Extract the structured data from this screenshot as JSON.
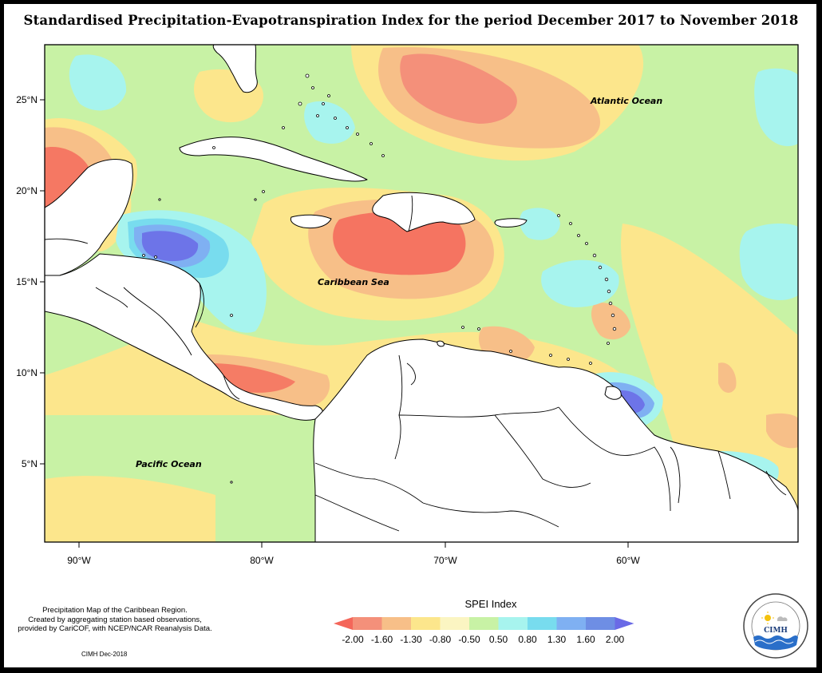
{
  "title": "Standardised Precipitation-Evapotranspiration Index for the period December 2017 to November 2018",
  "map": {
    "ocean_labels": [
      "Atlantic Ocean",
      "Caribbean Sea",
      "Pacific Ocean"
    ],
    "lat_ticks": [
      "25°N",
      "20°N",
      "15°N",
      "10°N",
      "5°N"
    ],
    "lon_ticks": [
      "90°W",
      "80°W",
      "70°W",
      "60°W"
    ],
    "extent": {
      "lon_min": -92,
      "lon_max": -50.5,
      "lat_min": 1,
      "lat_max": 28.5
    }
  },
  "legend": {
    "title": "SPEI Index",
    "labels": [
      "-2.00",
      "-1.60",
      "-1.30",
      "-0.80",
      "-0.50",
      "0.50",
      "0.80",
      "1.30",
      "1.60",
      "2.00"
    ],
    "colors": [
      "#f4665a",
      "#f4907a",
      "#f7bf88",
      "#fce68c",
      "#fbf5c2",
      "#c8f2a5",
      "#a7f4ee",
      "#78dcee",
      "#7fb0f2",
      "#6e8ee4",
      "#6a6ae6"
    ]
  },
  "footer": {
    "lines": [
      "Precipitation Map of the Caribbean Region.",
      "Created by aggregating station based observations,",
      "provided by CariCOF, with NCEP/NCAR Reanalysis Data."
    ],
    "credit": "CIMH Dec-2018"
  },
  "logo": {
    "text": "CIMH",
    "ring_text": "Caribbean Institute for Meteorology and Hydrology"
  }
}
